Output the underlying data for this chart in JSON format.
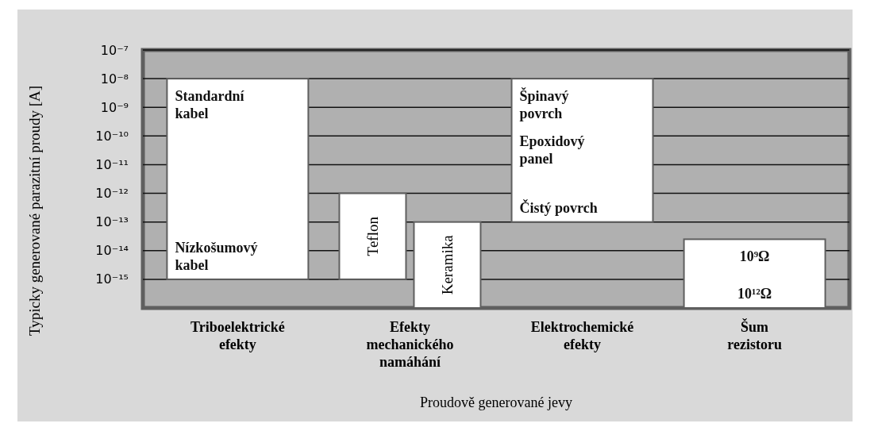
{
  "chart_data": {
    "type": "bar",
    "xlabel": "Proudově generované jevy",
    "ylabel": "Typicky generované parazitní proudy [A]",
    "categories": [
      "Triboelektrické efekty",
      "Efekty mechanického namáhání",
      "Elektrochemické efekty",
      "Šum rezistoru"
    ],
    "series": [
      {
        "color": "#ffffff",
        "values": [
          9.999999e-09,
          null,
          9.9999e-09,
          2.49e-14
        ],
        "base": [
          1e-15,
          null,
          1e-13,
          1e-16
        ]
      },
      {
        "name": "Teflon",
        "color": "#ffffff",
        "values": [
          null,
          9.99e-13,
          null,
          null
        ],
        "base": [
          null,
          1e-15,
          null,
          null
        ]
      },
      {
        "name": "Keramika",
        "color": "#ffffff",
        "values": [
          null,
          9.99e-14,
          null,
          null
        ],
        "base": [
          null,
          1e-16,
          null,
          null
        ]
      }
    ],
    "log": true,
    "ylim": [
      1e-16,
      1e-07
    ],
    "yticks": [
      {
        "value": 1e-07,
        "label": "10⁻⁷"
      },
      {
        "value": 1e-08,
        "label": "10⁻⁸"
      },
      {
        "value": 1e-09,
        "label": "10⁻⁹"
      },
      {
        "value": 1e-10,
        "label": "10⁻¹⁰"
      },
      {
        "value": 1e-11,
        "label": "10⁻¹¹"
      },
      {
        "value": 1e-12,
        "label": "10⁻¹²"
      },
      {
        "value": 1e-13,
        "label": "10⁻¹³"
      },
      {
        "value": 1e-14,
        "label": "10⁻¹⁴"
      },
      {
        "value": 1e-15,
        "label": "10⁻¹⁵"
      }
    ],
    "grid": "y",
    "annotations": [
      {
        "text": "Standardní kabel",
        "x": "Triboelektrické efekty",
        "y": 1e-08
      },
      {
        "text": "Nízkošumový kabel",
        "x": "Triboelektrické efekty",
        "y": 1e-15
      },
      {
        "text": "Špinavý povrch",
        "x": "Elektrochemické efekty",
        "y": 1e-08
      },
      "Epoxidový panel",
      {
        "text": "Čistý povrch",
        "x": "Elektrochemické efekty",
        "y": 1e-13
      },
      {
        "text": "10⁹Ω",
        "x": "Šum rezistoru",
        "y": 2.5e-14
      },
      {
        "text": "10¹²Ω",
        "x": "Šum rezistoru",
        "y": 1e-16
      }
    ]
  }
}
